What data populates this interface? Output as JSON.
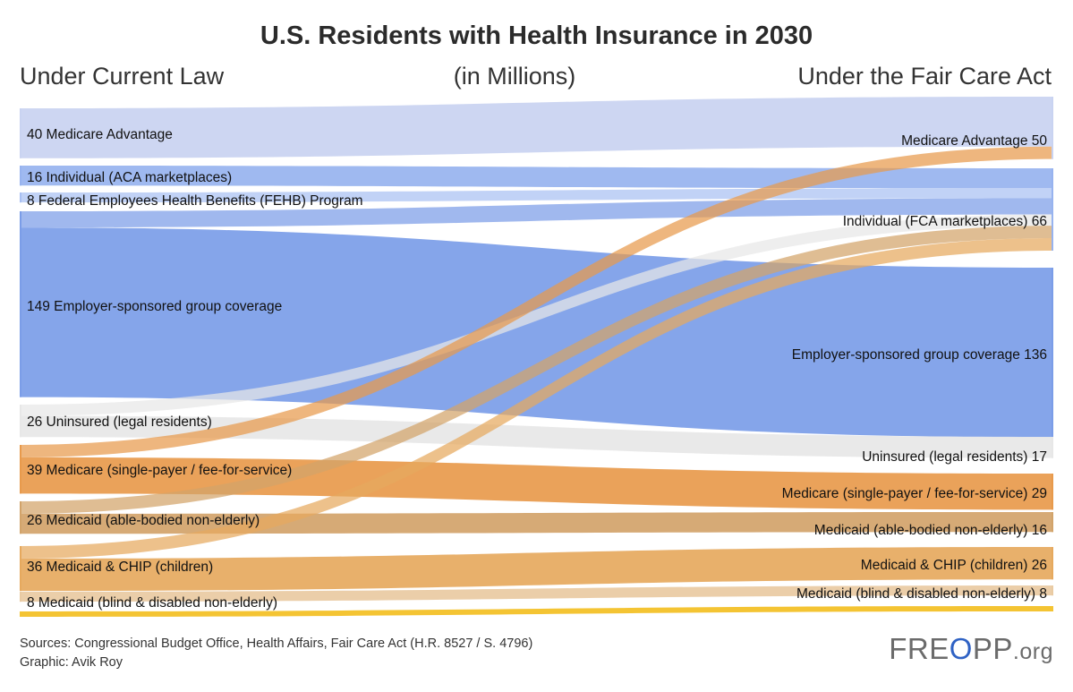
{
  "chart_data": {
    "type": "sankey",
    "title": "U.S. Residents with Health Insurance in 2030",
    "left_heading": "Under Current Law",
    "unit_heading": "(in Millions)",
    "right_heading": "Under the Fair Care Act",
    "left_nodes": [
      {
        "id": "ma",
        "label": "40 Medicare Advantage",
        "value": 40
      },
      {
        "id": "ind",
        "label": "16 Individual (ACA marketplaces)",
        "value": 16
      },
      {
        "id": "fehb",
        "label": "8 Federal Employees Health Benefits (FEHB) Program",
        "value": 8
      },
      {
        "id": "esi",
        "label": "149 Employer-sponsored group coverage",
        "value": 149
      },
      {
        "id": "unins",
        "label": "26 Uninsured (legal residents)",
        "value": 26
      },
      {
        "id": "medicare",
        "label": "39 Medicare (single-payer / fee-for-service)",
        "value": 39
      },
      {
        "id": "mcd_able",
        "label": "26 Medicaid (able-bodied non-elderly)",
        "value": 26
      },
      {
        "id": "mcd_chip",
        "label": "36 Medicaid & CHIP (children)",
        "value": 36
      },
      {
        "id": "mcd_bd",
        "label": "8 Medicaid (blind & disabled non-elderly)",
        "value": 8
      }
    ],
    "right_nodes": [
      {
        "id": "ma",
        "label": "Medicare Advantage 50",
        "value": 50
      },
      {
        "id": "ind",
        "label": "Individual (FCA marketplaces) 66",
        "value": 66
      },
      {
        "id": "esi",
        "label": "Employer-sponsored group coverage 136",
        "value": 136
      },
      {
        "id": "unins",
        "label": "Uninsured (legal residents) 17",
        "value": 17
      },
      {
        "id": "medicare",
        "label": "Medicare (single-payer / fee-for-service) 29",
        "value": 29
      },
      {
        "id": "mcd_able",
        "label": "Medicaid (able-bodied non-elderly) 16",
        "value": 16
      },
      {
        "id": "mcd_chip",
        "label": "Medicaid & CHIP (children) 26",
        "value": 26
      },
      {
        "id": "mcd_bd",
        "label": "Medicaid (blind & disabled non-elderly) 8",
        "value": 8
      }
    ],
    "flows": [
      {
        "from": "ma",
        "to": "ma",
        "value": 40
      },
      {
        "from": "ind",
        "to": "ind",
        "value": 16
      },
      {
        "from": "fehb",
        "to": "ind",
        "value": 8
      },
      {
        "from": "esi",
        "to": "ind",
        "value": 13
      },
      {
        "from": "esi",
        "to": "esi",
        "value": 136
      },
      {
        "from": "unins",
        "to": "ind",
        "value": 9
      },
      {
        "from": "unins",
        "to": "unins",
        "value": 17
      },
      {
        "from": "medicare",
        "to": "ma",
        "value": 10
      },
      {
        "from": "medicare",
        "to": "medicare",
        "value": 29
      },
      {
        "from": "mcd_able",
        "to": "ind",
        "value": 10
      },
      {
        "from": "mcd_able",
        "to": "mcd_able",
        "value": 16
      },
      {
        "from": "mcd_chip",
        "to": "ind",
        "value": 10
      },
      {
        "from": "mcd_chip",
        "to": "mcd_chip",
        "value": 26
      },
      {
        "from": "mcd_bd",
        "to": "mcd_bd",
        "value": 8
      }
    ],
    "colors": {
      "ma": "#c9d3f1",
      "ind": "#97b3ef",
      "fehb": "#a9c0f2",
      "esi": "#7b9de8",
      "unins": "#e7e7e7",
      "medicare": "#e89a4c",
      "mcd_able": "#d2a36a",
      "mcd_chip": "#e6a95e",
      "mcd_bd": "#e9caa2",
      "trailing": "#f4c433"
    }
  },
  "footer": {
    "sources": "Sources: Congressional Budget Office, Health Affairs, Fair Care Act (H.R. 8527 / S. 4796)",
    "credit": "Graphic: Avik Roy"
  },
  "logo": {
    "part1": "FRE",
    "part2": "O",
    "part3": "PP",
    "part4": ".org"
  }
}
